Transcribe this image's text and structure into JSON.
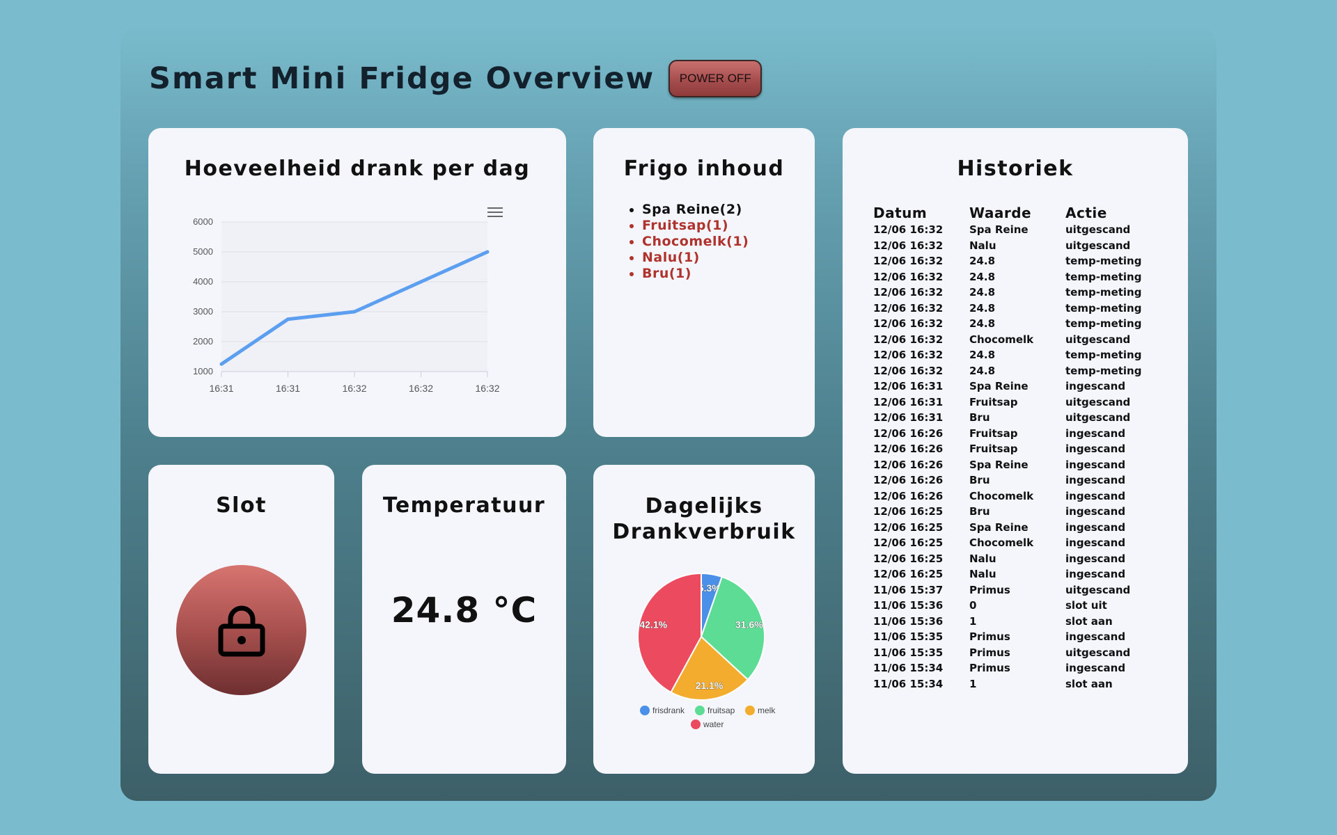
{
  "header": {
    "title": "Smart Mini Fridge Overview",
    "power_button": "POWER OFF"
  },
  "drink_chart": {
    "title": "Hoeveelheid drank per dag",
    "menu_icon": "hamburger-menu-icon"
  },
  "chart_data": [
    {
      "type": "line",
      "title": "",
      "x": [
        "16:31",
        "16:31",
        "16:32",
        "16:32",
        "16:32"
      ],
      "values": [
        1250,
        2750,
        3000,
        4000,
        5000
      ],
      "y_ticks": [
        1000,
        2000,
        3000,
        4000,
        5000,
        6000
      ],
      "ylim": [
        1000,
        6000
      ],
      "xlabel": "",
      "ylabel": "",
      "grid": true,
      "color": "#5c9ff0"
    },
    {
      "type": "pie",
      "title": "",
      "slices": [
        {
          "label": "frisdrank",
          "value": 5.3,
          "display": "5.3%",
          "color": "#4a90e8"
        },
        {
          "label": "fruitsap",
          "value": 31.6,
          "display": "31.6%",
          "color": "#5ddc96"
        },
        {
          "label": "melk",
          "value": 21.1,
          "display": "21.1%",
          "color": "#f3ac2e"
        },
        {
          "label": "water",
          "value": 42.1,
          "display": "42.1%",
          "color": "#ec4a5e"
        }
      ],
      "legend": "bottom"
    }
  ],
  "frigo": {
    "title": "Frigo inhoud",
    "items": [
      {
        "text": "Spa Reine(2)",
        "status": "in-stock"
      },
      {
        "text": "Fruitsap(1)",
        "status": "low"
      },
      {
        "text": "Chocomelk(1)",
        "status": "low"
      },
      {
        "text": "Nalu(1)",
        "status": "low"
      },
      {
        "text": "Bru(1)",
        "status": "low"
      }
    ]
  },
  "history": {
    "title": "Historiek",
    "columns": [
      "Datum",
      "Waarde",
      "Actie"
    ],
    "rows": [
      [
        "12/06 16:32",
        "Spa Reine",
        "uitgescand"
      ],
      [
        "12/06 16:32",
        "Nalu",
        "uitgescand"
      ],
      [
        "12/06 16:32",
        "24.8",
        "temp-meting"
      ],
      [
        "12/06 16:32",
        "24.8",
        "temp-meting"
      ],
      [
        "12/06 16:32",
        "24.8",
        "temp-meting"
      ],
      [
        "12/06 16:32",
        "24.8",
        "temp-meting"
      ],
      [
        "12/06 16:32",
        "24.8",
        "temp-meting"
      ],
      [
        "12/06 16:32",
        "Chocomelk",
        "uitgescand"
      ],
      [
        "12/06 16:32",
        "24.8",
        "temp-meting"
      ],
      [
        "12/06 16:32",
        "24.8",
        "temp-meting"
      ],
      [
        "12/06 16:31",
        "Spa Reine",
        "ingescand"
      ],
      [
        "12/06 16:31",
        "Fruitsap",
        "uitgescand"
      ],
      [
        "12/06 16:31",
        "Bru",
        "uitgescand"
      ],
      [
        "12/06 16:26",
        "Fruitsap",
        "ingescand"
      ],
      [
        "12/06 16:26",
        "Fruitsap",
        "ingescand"
      ],
      [
        "12/06 16:26",
        "Spa Reine",
        "ingescand"
      ],
      [
        "12/06 16:26",
        "Bru",
        "ingescand"
      ],
      [
        "12/06 16:26",
        "Chocomelk",
        "ingescand"
      ],
      [
        "12/06 16:25",
        "Bru",
        "ingescand"
      ],
      [
        "12/06 16:25",
        "Spa Reine",
        "ingescand"
      ],
      [
        "12/06 16:25",
        "Chocomelk",
        "ingescand"
      ],
      [
        "12/06 16:25",
        "Nalu",
        "ingescand"
      ],
      [
        "12/06 16:25",
        "Nalu",
        "ingescand"
      ],
      [
        "11/06 15:37",
        "Primus",
        "uitgescand"
      ],
      [
        "11/06 15:36",
        "0",
        "slot uit"
      ],
      [
        "11/06 15:36",
        "1",
        "slot aan"
      ],
      [
        "11/06 15:35",
        "Primus",
        "ingescand"
      ],
      [
        "11/06 15:35",
        "Primus",
        "uitgescand"
      ],
      [
        "11/06 15:34",
        "Primus",
        "ingescand"
      ],
      [
        "11/06 15:34",
        "1",
        "slot aan"
      ]
    ]
  },
  "slot": {
    "title": "Slot",
    "icon": "lock-icon"
  },
  "temperature": {
    "title": "Temperatuur",
    "value": "24.8 °C"
  },
  "consumption": {
    "title_line1": "Dagelijks",
    "title_line2": "Drankverbruik"
  }
}
